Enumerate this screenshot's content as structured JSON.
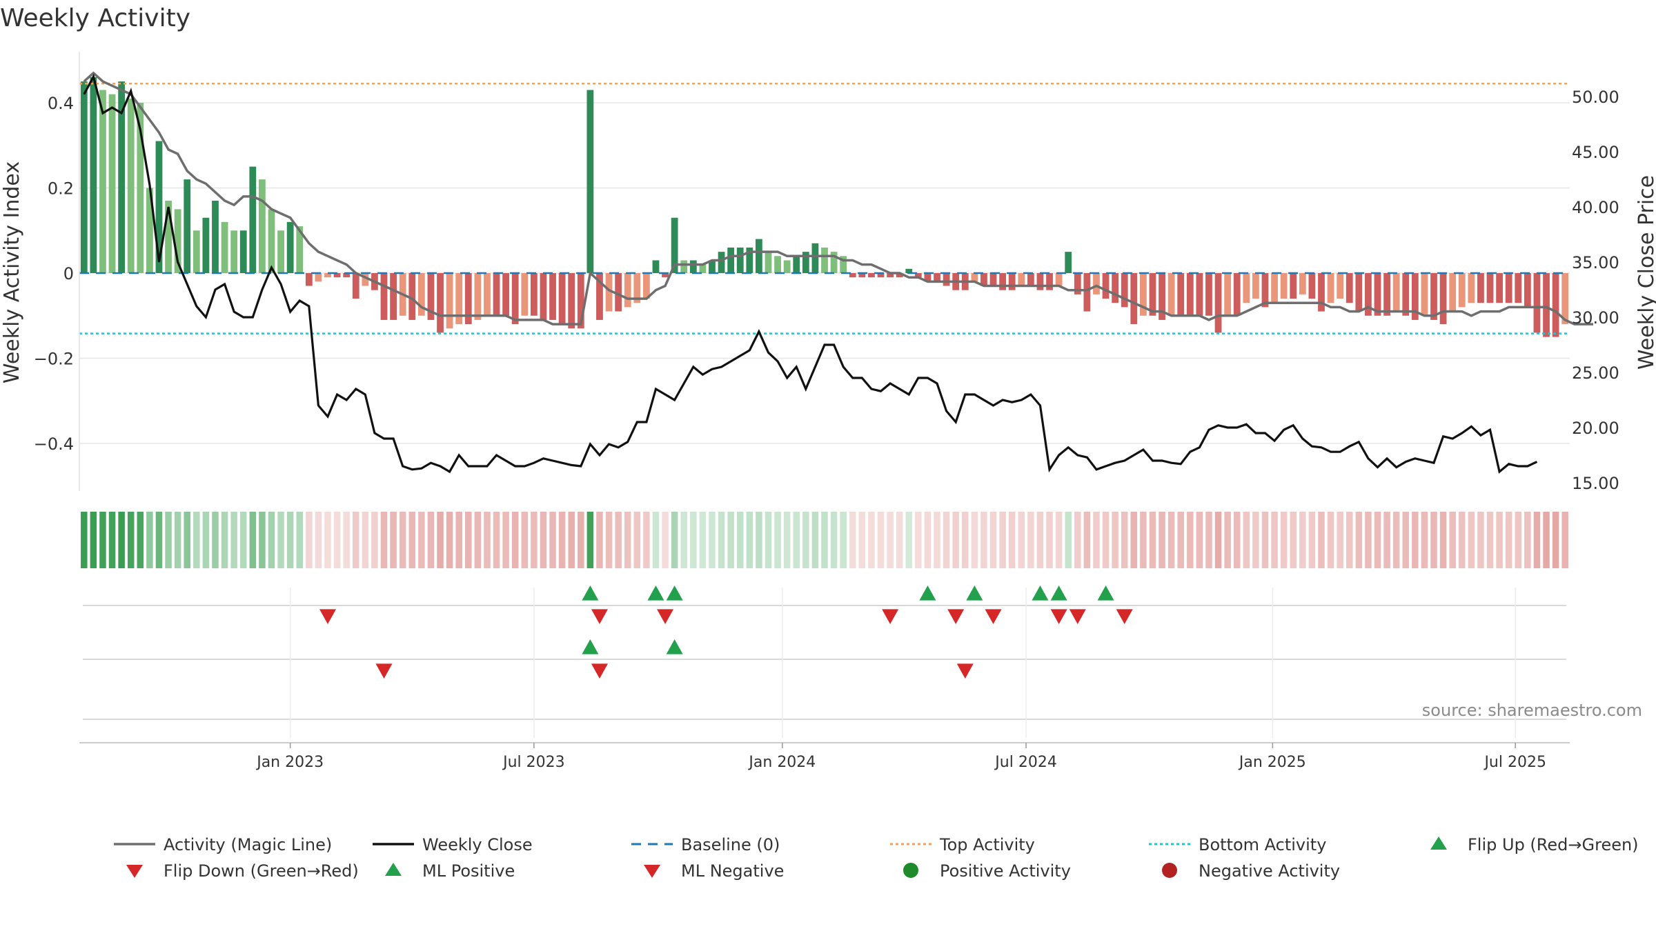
{
  "title": "Weekly Activity",
  "chart_data": {
    "type": "bar",
    "title": "Weekly Activity",
    "ylabel_left": "Weekly Activity Index",
    "ylabel_right": "Weekly Close Price",
    "y_left_ticks": [
      0.4,
      0.2,
      0,
      -0.2,
      -0.4
    ],
    "y_left_tick_labels": [
      "0.4",
      "0.2",
      "0",
      "−0.2",
      "−0.4"
    ],
    "y_left_range": [
      -0.5,
      0.5
    ],
    "y_right_ticks": [
      50,
      45,
      40,
      35,
      30,
      25,
      20,
      15
    ],
    "y_right_tick_labels": [
      "50.00",
      "45.00",
      "40.00",
      "35.00",
      "30.00",
      "25.00",
      "20.00",
      "15.00"
    ],
    "x_ticks": [
      {
        "label": "Jan 2023",
        "week": 22
      },
      {
        "label": "Jul 2023",
        "week": 48
      },
      {
        "label": "Jan 2024",
        "week": 74.5
      },
      {
        "label": "Jul 2024",
        "week": 100.5
      },
      {
        "label": "Jan 2025",
        "week": 126.8
      },
      {
        "label": "Jul 2025",
        "week": 152.7
      }
    ],
    "thresholds": {
      "top": 0.445,
      "bottom": -0.142,
      "baseline": 0
    },
    "activity": [
      0.45,
      0.46,
      0.43,
      0.42,
      0.45,
      0.41,
      0.4,
      0.2,
      0.31,
      0.17,
      0.15,
      0.22,
      0.1,
      0.13,
      0.17,
      0.12,
      0.1,
      0.1,
      0.25,
      0.22,
      0.15,
      0.1,
      0.12,
      0.11,
      -0.03,
      -0.02,
      -0.01,
      -0.01,
      -0.01,
      -0.06,
      -0.03,
      -0.04,
      -0.11,
      -0.11,
      -0.1,
      -0.11,
      -0.1,
      -0.11,
      -0.14,
      -0.13,
      -0.12,
      -0.12,
      -0.11,
      -0.1,
      -0.1,
      -0.1,
      -0.12,
      -0.1,
      -0.1,
      -0.11,
      -0.11,
      -0.12,
      -0.13,
      -0.13,
      0.43,
      -0.11,
      -0.09,
      -0.09,
      -0.08,
      -0.07,
      -0.06,
      0.03,
      -0.01,
      0.13,
      0.03,
      0.03,
      0.02,
      0.03,
      0.05,
      0.06,
      0.06,
      0.06,
      0.08,
      0.05,
      0.04,
      0.03,
      0.04,
      0.05,
      0.07,
      0.06,
      0.05,
      0.04,
      -0.01,
      -0.01,
      -0.01,
      -0.01,
      -0.01,
      -0.01,
      0.01,
      -0.01,
      -0.02,
      -0.02,
      -0.03,
      -0.04,
      -0.04,
      -0.02,
      -0.03,
      -0.03,
      -0.04,
      -0.04,
      -0.03,
      -0.03,
      -0.04,
      -0.04,
      -0.03,
      0.05,
      -0.05,
      -0.09,
      -0.05,
      -0.06,
      -0.07,
      -0.08,
      -0.12,
      -0.1,
      -0.1,
      -0.11,
      -0.1,
      -0.1,
      -0.1,
      -0.1,
      -0.1,
      -0.14,
      -0.1,
      -0.1,
      -0.07,
      -0.06,
      -0.08,
      -0.07,
      -0.06,
      -0.06,
      -0.05,
      -0.06,
      -0.09,
      -0.07,
      -0.06,
      -0.07,
      -0.09,
      -0.1,
      -0.1,
      -0.1,
      -0.09,
      -0.1,
      -0.11,
      -0.1,
      -0.11,
      -0.12,
      -0.09,
      -0.08,
      -0.07,
      -0.07,
      -0.07,
      -0.07,
      -0.07,
      -0.07,
      -0.08,
      -0.14,
      -0.15,
      -0.15,
      -0.12
    ],
    "magic_line": [
      0.45,
      0.47,
      0.45,
      0.44,
      0.43,
      0.42,
      0.39,
      0.36,
      0.33,
      0.29,
      0.28,
      0.24,
      0.22,
      0.21,
      0.19,
      0.17,
      0.16,
      0.18,
      0.18,
      0.17,
      0.15,
      0.14,
      0.13,
      0.1,
      0.07,
      0.05,
      0.04,
      0.03,
      0.02,
      0.0,
      -0.01,
      -0.02,
      -0.03,
      -0.04,
      -0.05,
      -0.06,
      -0.08,
      -0.09,
      -0.1,
      -0.1,
      -0.1,
      -0.1,
      -0.1,
      -0.1,
      -0.1,
      -0.1,
      -0.11,
      -0.11,
      -0.11,
      -0.11,
      -0.12,
      -0.12,
      -0.12,
      -0.12,
      0.0,
      -0.02,
      -0.04,
      -0.05,
      -0.06,
      -0.06,
      -0.06,
      -0.04,
      -0.03,
      0.02,
      0.02,
      0.02,
      0.02,
      0.03,
      0.03,
      0.04,
      0.04,
      0.05,
      0.05,
      0.05,
      0.05,
      0.04,
      0.04,
      0.04,
      0.04,
      0.04,
      0.04,
      0.03,
      0.03,
      0.02,
      0.02,
      0.01,
      0.0,
      0.0,
      -0.01,
      -0.01,
      -0.02,
      -0.02,
      -0.02,
      -0.02,
      -0.02,
      -0.02,
      -0.03,
      -0.03,
      -0.03,
      -0.03,
      -0.03,
      -0.03,
      -0.03,
      -0.03,
      -0.03,
      -0.04,
      -0.04,
      -0.04,
      -0.03,
      -0.04,
      -0.05,
      -0.06,
      -0.07,
      -0.08,
      -0.09,
      -0.09,
      -0.1,
      -0.1,
      -0.1,
      -0.1,
      -0.11,
      -0.1,
      -0.1,
      -0.1,
      -0.09,
      -0.08,
      -0.07,
      -0.07,
      -0.07,
      -0.07,
      -0.07,
      -0.07,
      -0.07,
      -0.08,
      -0.08,
      -0.09,
      -0.09,
      -0.08,
      -0.09,
      -0.09,
      -0.09,
      -0.09,
      -0.09,
      -0.1,
      -0.1,
      -0.09,
      -0.09,
      -0.09,
      -0.1,
      -0.09,
      -0.09,
      -0.09,
      -0.08,
      -0.08,
      -0.08,
      -0.08,
      -0.08,
      -0.09,
      -0.11,
      -0.12,
      -0.12,
      -0.12
    ],
    "weekly_close": [
      50.2,
      51.8,
      48.5,
      49,
      48.5,
      50.5,
      47,
      42,
      35,
      40,
      35,
      33,
      31,
      30,
      32.5,
      33,
      30.5,
      30,
      30,
      32.5,
      34.5,
      33,
      30.5,
      31.5,
      31,
      22,
      21,
      23,
      22.5,
      23.5,
      23,
      19.5,
      19,
      19,
      16.5,
      16.2,
      16.3,
      16.8,
      16.5,
      16,
      17.5,
      16.5,
      16.5,
      16.5,
      17.5,
      17,
      16.5,
      16.5,
      16.8,
      17.2,
      17,
      16.8,
      16.6,
      16.5,
      18.5,
      17.5,
      18.5,
      18.2,
      18.7,
      20.5,
      20.5,
      23.5,
      23,
      22.5,
      24,
      25.5,
      24.8,
      25.3,
      25.5,
      26,
      26.5,
      27,
      28.7,
      26.8,
      26,
      24.5,
      25.5,
      23.5,
      25.5,
      27.5,
      27.5,
      25.5,
      24.5,
      24.5,
      23.5,
      23.3,
      24,
      23.5,
      23,
      24.5,
      24.5,
      24,
      21.5,
      20.5,
      23,
      23,
      22.5,
      22,
      22.5,
      22.3,
      22.5,
      23,
      22,
      16.2,
      17.5,
      18.2,
      17.5,
      17.3,
      16.2,
      16.5,
      16.8,
      17,
      17.5,
      18,
      17,
      17,
      16.8,
      16.7,
      17.8,
      18.2,
      19.8,
      20.2,
      20,
      20,
      20.3,
      19.5,
      19.5,
      18.8,
      19.8,
      20.2,
      19,
      18.3,
      18.2,
      17.8,
      17.8,
      18.3,
      18.7,
      17.2,
      16.4,
      17.2,
      16.4,
      16.9,
      17.2,
      17,
      16.8,
      19.2,
      19,
      19.5,
      20.1,
      19.3,
      19.8,
      16,
      16.7,
      16.5,
      16.5,
      16.9
    ],
    "flip_up": [
      54,
      61,
      63,
      90,
      95,
      102,
      104,
      109
    ],
    "flip_down": [
      26,
      55,
      62,
      86,
      93,
      97,
      104,
      106,
      111
    ],
    "ml_positive": [
      54,
      63
    ],
    "ml_negative": [
      32,
      55,
      94
    ],
    "legend": [
      {
        "label": "Activity (Magic Line)",
        "kind": "line-solid",
        "color": "#6e6e6e"
      },
      {
        "label": "Weekly Close",
        "kind": "line-solid",
        "color": "#111111"
      },
      {
        "label": "Baseline (0)",
        "kind": "line-dashed",
        "color": "#1f77b4"
      },
      {
        "label": "Top Activity",
        "kind": "line-dotted",
        "color": "#f0a060"
      },
      {
        "label": "Bottom Activity",
        "kind": "line-dotted",
        "color": "#22c4d8"
      },
      {
        "label": "Flip Up (Red→Green)",
        "kind": "triangle-up",
        "color": "#22a04b"
      },
      {
        "label": "Flip Down (Green→Red)",
        "kind": "triangle-down",
        "color": "#d62728"
      },
      {
        "label": "ML Positive",
        "kind": "triangle-up",
        "color": "#22a04b"
      },
      {
        "label": "ML Negative",
        "kind": "triangle-down",
        "color": "#d62728"
      },
      {
        "label": "Positive Activity",
        "kind": "circle",
        "color": "#1f8a2a"
      },
      {
        "label": "Negative Activity",
        "kind": "circle",
        "color": "#b22222"
      }
    ]
  },
  "source": "source: sharemaestro.com",
  "colors": {
    "pos_strong": "#2e8b57",
    "pos_light": "#7fbf7b",
    "neg_strong": "#cd5c5c",
    "neg_light": "#e9967a",
    "grid": "#e6e6e6"
  }
}
